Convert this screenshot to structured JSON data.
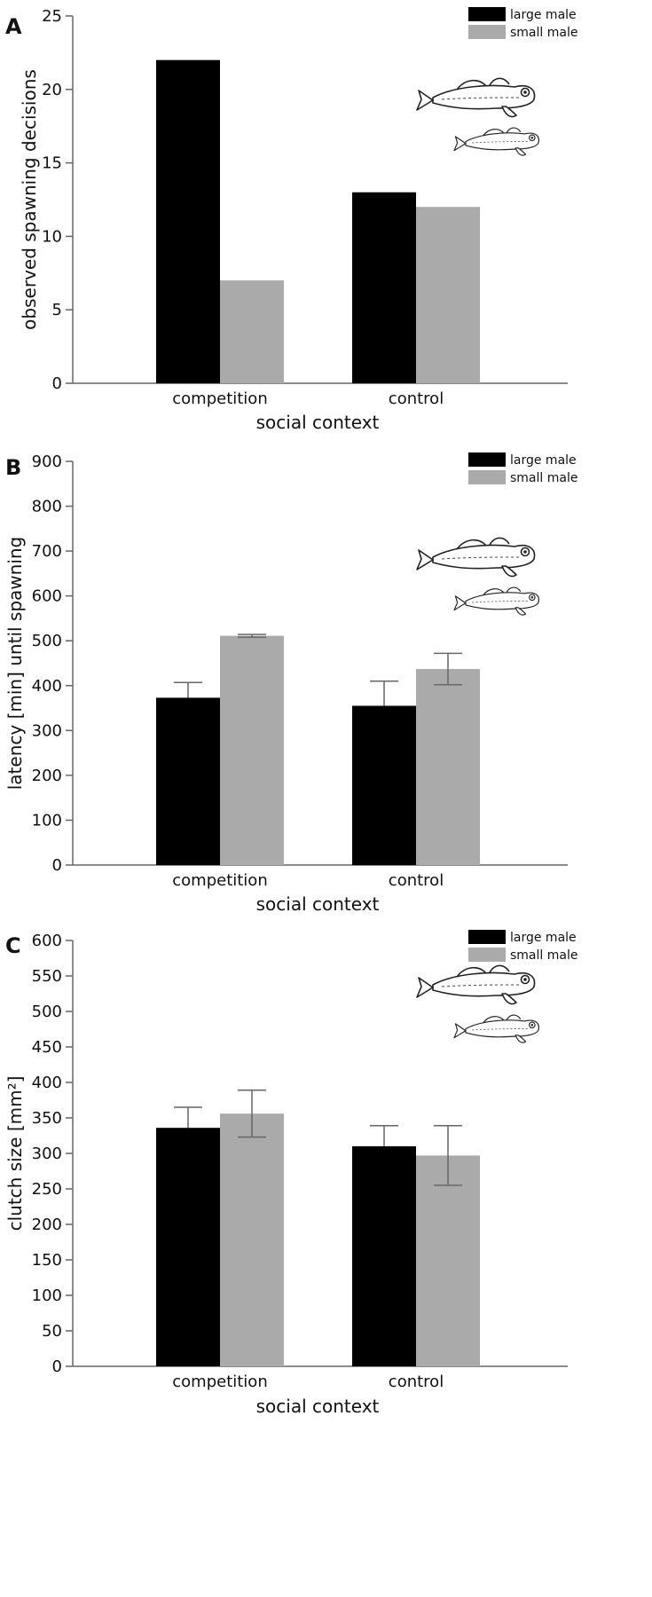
{
  "colors": {
    "large": "#000000",
    "small": "#aaaaaa",
    "axis": "#666666"
  },
  "icons": [
    "fish-icon"
  ],
  "chart_data": [
    {
      "type": "bar",
      "panel_label": "A",
      "categories": [
        "competition",
        "control"
      ],
      "series": [
        {
          "name": "large male",
          "values": [
            22,
            13
          ]
        },
        {
          "name": "small male",
          "values": [
            7,
            12
          ]
        }
      ],
      "xlabel": "social context",
      "ylabel": "observed spawning decisions",
      "ylim": [
        0,
        25
      ],
      "yticks": [
        0,
        5,
        10,
        15,
        20,
        25
      ],
      "legend": "top-right",
      "grid": false
    },
    {
      "type": "bar",
      "panel_label": "B",
      "categories": [
        "competition",
        "control"
      ],
      "series": [
        {
          "name": "large male",
          "values": [
            373,
            355
          ],
          "error_high": [
            407,
            410
          ]
        },
        {
          "name": "small male",
          "values": [
            511,
            437
          ],
          "error_high": [
            514,
            472
          ],
          "error_low": [
            508,
            402
          ]
        }
      ],
      "xlabel": "social context",
      "ylabel": "latency [min] until spawning",
      "ylim": [
        0,
        900
      ],
      "yticks": [
        0,
        100,
        200,
        300,
        400,
        500,
        600,
        700,
        800,
        900
      ],
      "legend": "top-right",
      "grid": false
    },
    {
      "type": "bar",
      "panel_label": "C",
      "categories": [
        "competition",
        "control"
      ],
      "series": [
        {
          "name": "large male",
          "values": [
            336,
            310
          ],
          "error_high": [
            365,
            339
          ]
        },
        {
          "name": "small male",
          "values": [
            356,
            297
          ],
          "error_high": [
            389,
            339
          ],
          "error_low": [
            323,
            255
          ]
        }
      ],
      "xlabel": "social context",
      "ylabel": "clutch size [mm²]",
      "ylim": [
        0,
        600
      ],
      "yticks": [
        0,
        50,
        100,
        150,
        200,
        250,
        300,
        350,
        400,
        450,
        500,
        550,
        600
      ],
      "legend": "top-right",
      "grid": false
    }
  ]
}
